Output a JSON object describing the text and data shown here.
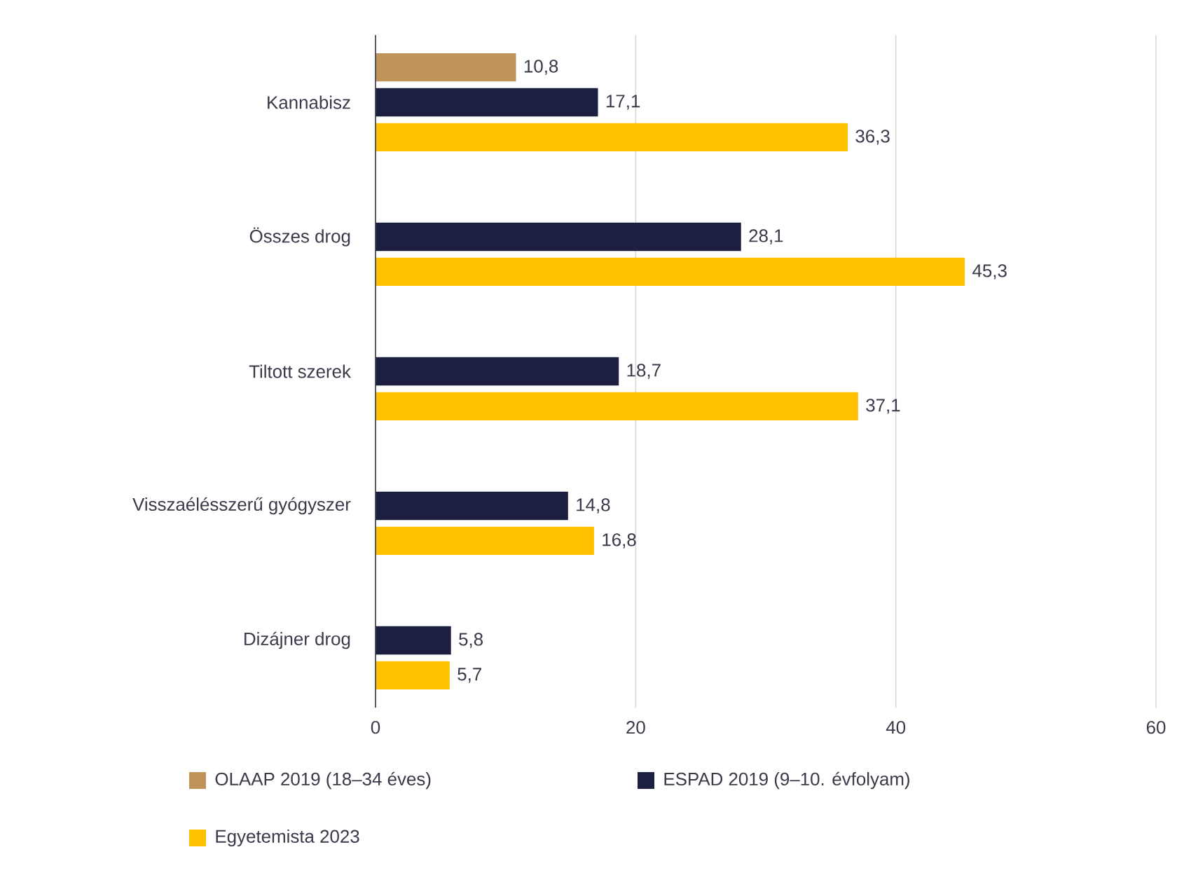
{
  "chart_data": {
    "type": "bar",
    "orientation": "horizontal",
    "categories": [
      "Kannabisz",
      "Összes drog",
      "Tiltott szerek",
      "Visszaélésszerű gyógyszer",
      "Dizájner drog"
    ],
    "series": [
      {
        "name": "OLAAP 2019 (18–34 éves)",
        "color": "#c0935a",
        "values": [
          10.8,
          null,
          null,
          null,
          null
        ],
        "value_labels": [
          "10,8",
          null,
          null,
          null,
          null
        ]
      },
      {
        "name": "ESPAD 2019 (9–10. évfolyam)",
        "color": "#1c1f40",
        "values": [
          17.1,
          28.1,
          18.7,
          14.8,
          5.8
        ],
        "value_labels": [
          "17,1",
          "28,1",
          "18,7",
          "14,8",
          "5,8"
        ]
      },
      {
        "name": "Egyetemista 2023",
        "color": "#ffc000",
        "values": [
          36.3,
          45.3,
          37.1,
          16.8,
          5.7
        ],
        "value_labels": [
          "36,3",
          "45,3",
          "37,1",
          "16,8",
          "5,7"
        ]
      }
    ],
    "xlim": [
      0,
      60
    ],
    "xticks": [
      0,
      20,
      40,
      60
    ],
    "grid": "x",
    "legend": "bottom"
  }
}
